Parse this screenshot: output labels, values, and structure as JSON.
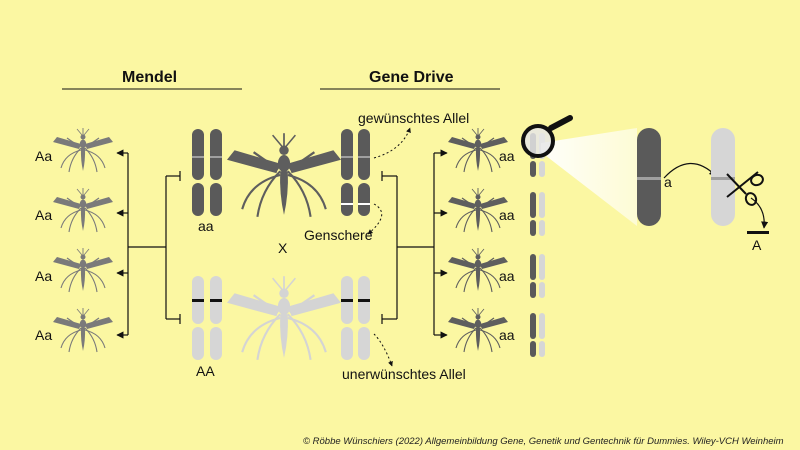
{
  "mendel": {
    "title": "Mendel",
    "offspring_genotypes": [
      "Aa",
      "Aa",
      "Aa",
      "Aa"
    ],
    "parent_dark_genotype": "aa",
    "parent_light_genotype": "AA",
    "cross_symbol": "X"
  },
  "gene_drive": {
    "title": "Gene Drive",
    "desired_allele_label": "gewünschtes Allel",
    "gene_scissors_label": "Genschere",
    "undesired_allele_label": "unerwünschtes Allel",
    "offspring_genotypes": [
      "aa",
      "aa",
      "aa",
      "aa"
    ],
    "zoom_allele_label": "a",
    "cut_allele_label": "A"
  },
  "colors": {
    "background": "#fbf7a2",
    "dark_chromosome": "#5a5a5a",
    "light_chromosome": "#d6d6d6",
    "mosquito_dark": "#6a6a6a",
    "mosquito_light": "#cfcfcf",
    "band": "#111111"
  },
  "copyright": "© Röbbe Wünschiers (2022) Allgemeinbildung Gene, Genetik und Gentechnik für Dummies. Wiley-VCH Weinheim"
}
